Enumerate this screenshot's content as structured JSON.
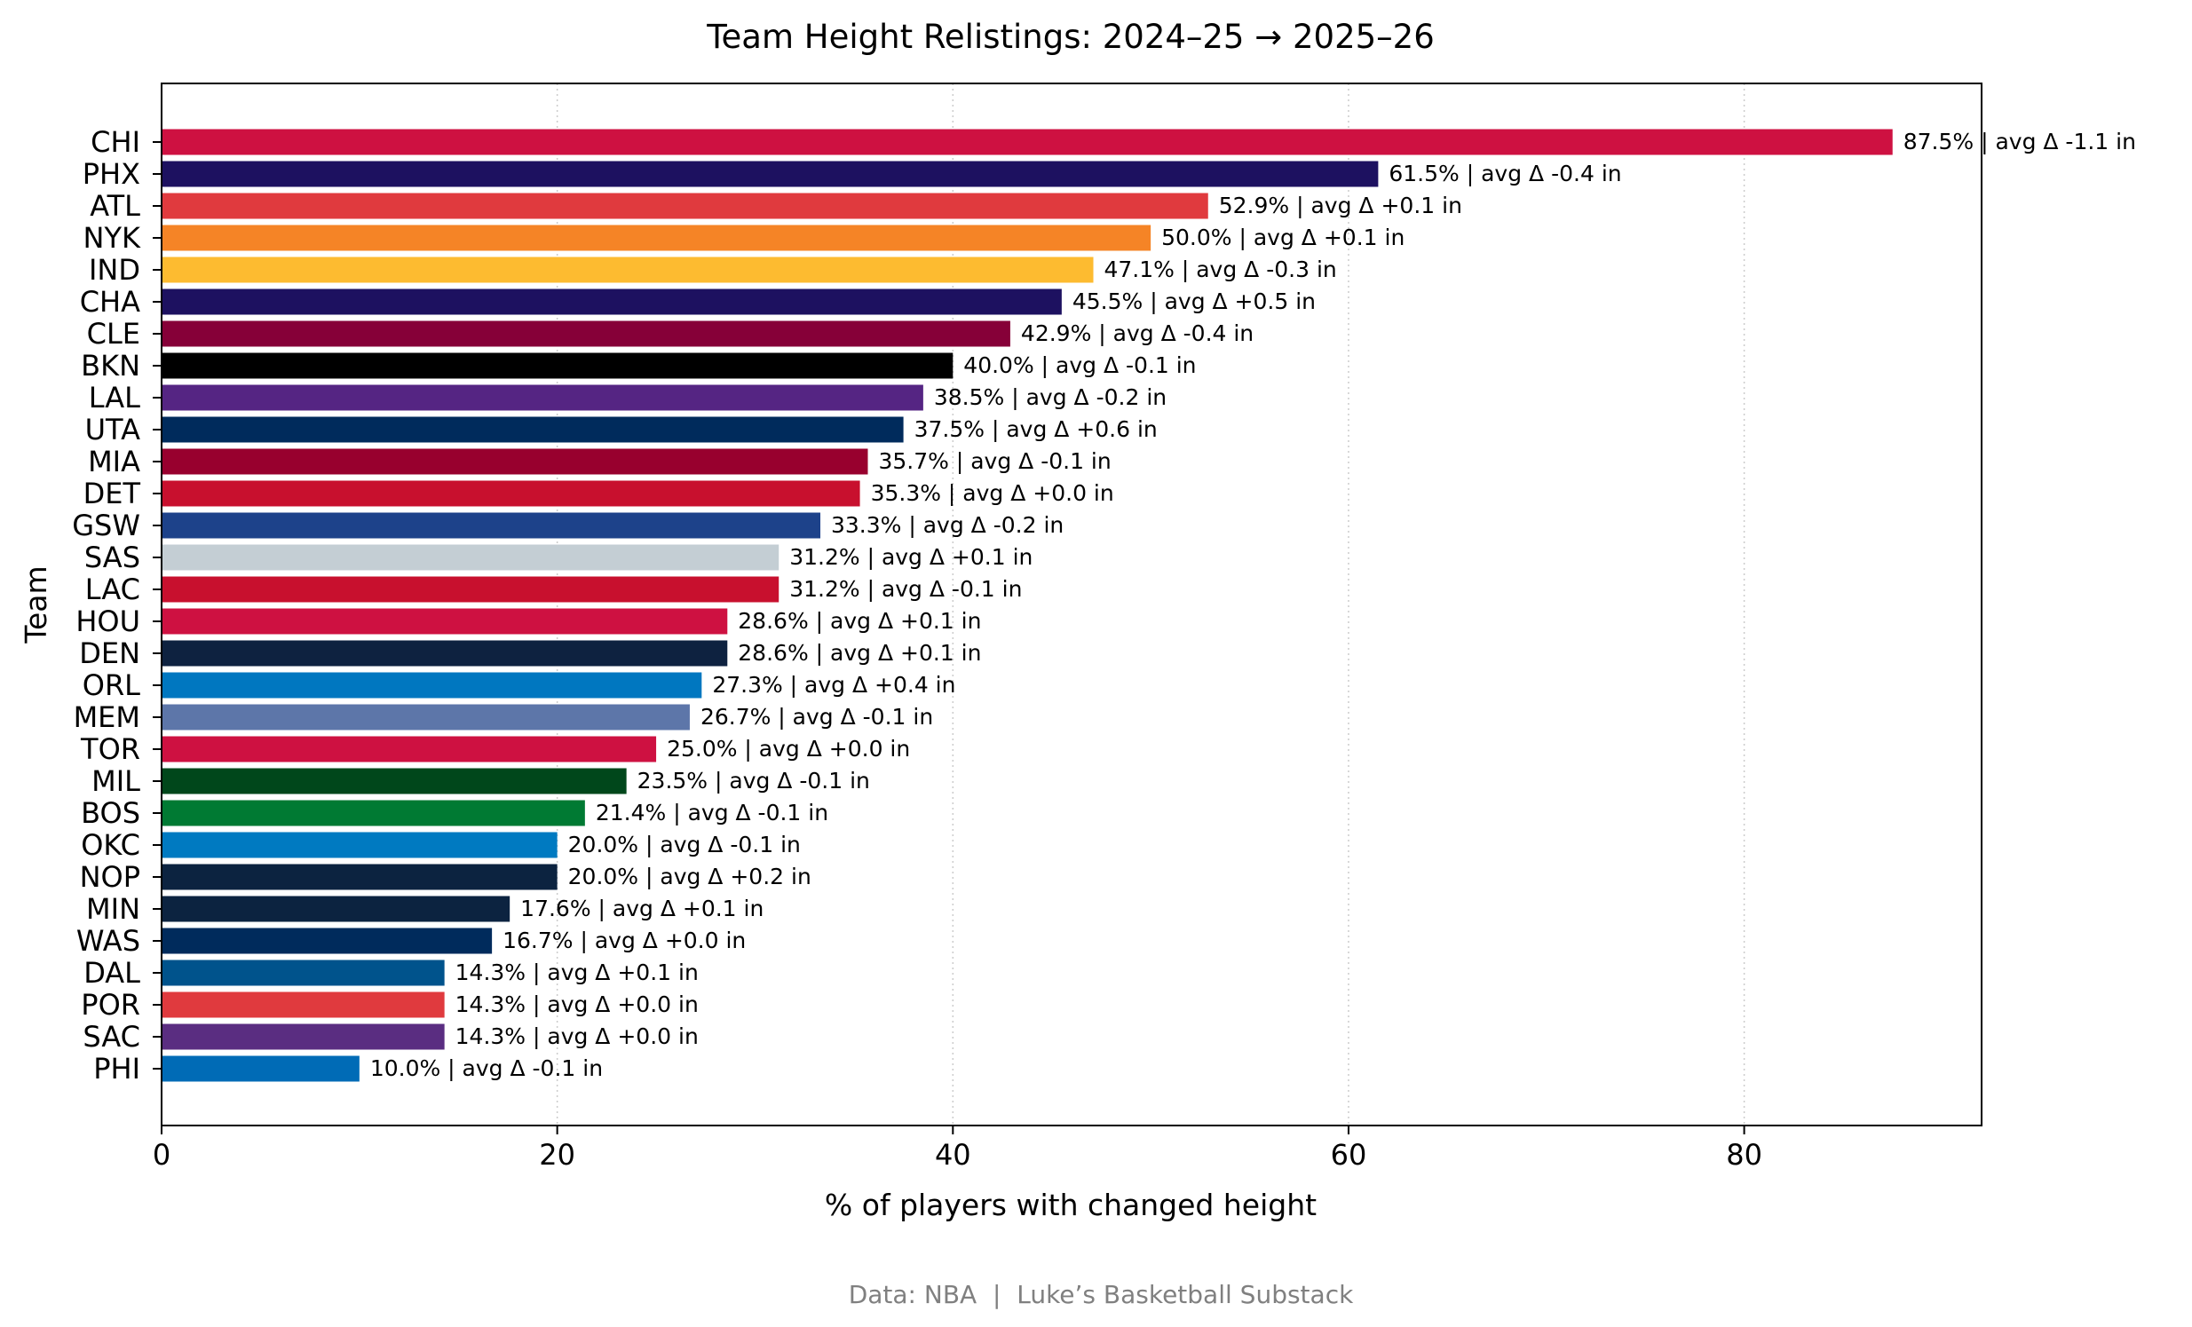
{
  "chart_data": {
    "type": "bar",
    "orientation": "horizontal",
    "title": "Team Height Relistings: 2024–25 → 2025–26",
    "xlabel": "% of players with changed height",
    "ylabel": "Team",
    "xlim": [
      0,
      92
    ],
    "xticks": [
      0,
      20,
      40,
      60,
      80
    ],
    "grid": "x-dotted",
    "footer": "Data: NBA  |  Luke’s Basketball Substack",
    "label_separator": "  |  ",
    "label_prefix": "avg Δ ",
    "label_unit": " in",
    "bars": [
      {
        "team": "CHI",
        "value": 87.5,
        "avg_delta": "-1.1",
        "color": "#CE1141"
      },
      {
        "team": "PHX",
        "value": 61.5,
        "avg_delta": "-0.4",
        "color": "#1D1160"
      },
      {
        "team": "ATL",
        "value": 52.9,
        "avg_delta": "+0.1",
        "color": "#E03A3E"
      },
      {
        "team": "NYK",
        "value": 50.0,
        "avg_delta": "+0.1",
        "color": "#F58426"
      },
      {
        "team": "IND",
        "value": 47.1,
        "avg_delta": "-0.3",
        "color": "#FDBB30"
      },
      {
        "team": "CHA",
        "value": 45.5,
        "avg_delta": "+0.5",
        "color": "#1D1160"
      },
      {
        "team": "CLE",
        "value": 42.9,
        "avg_delta": "-0.4",
        "color": "#860038"
      },
      {
        "team": "BKN",
        "value": 40.0,
        "avg_delta": "-0.1",
        "color": "#000000"
      },
      {
        "team": "LAL",
        "value": 38.5,
        "avg_delta": "-0.2",
        "color": "#552583"
      },
      {
        "team": "UTA",
        "value": 37.5,
        "avg_delta": "+0.6",
        "color": "#002B5C"
      },
      {
        "team": "MIA",
        "value": 35.7,
        "avg_delta": "-0.1",
        "color": "#98002E"
      },
      {
        "team": "DET",
        "value": 35.3,
        "avg_delta": "+0.0",
        "color": "#C8102E"
      },
      {
        "team": "GSW",
        "value": 33.3,
        "avg_delta": "-0.2",
        "color": "#1D428A"
      },
      {
        "team": "SAS",
        "value": 31.2,
        "avg_delta": "+0.1",
        "color": "#C4CED4"
      },
      {
        "team": "LAC",
        "value": 31.2,
        "avg_delta": "-0.1",
        "color": "#C8102E"
      },
      {
        "team": "HOU",
        "value": 28.6,
        "avg_delta": "+0.1",
        "color": "#CE1141"
      },
      {
        "team": "DEN",
        "value": 28.6,
        "avg_delta": "+0.1",
        "color": "#0E2240"
      },
      {
        "team": "ORL",
        "value": 27.3,
        "avg_delta": "+0.4",
        "color": "#0077C0"
      },
      {
        "team": "MEM",
        "value": 26.7,
        "avg_delta": "-0.1",
        "color": "#5D76A9"
      },
      {
        "team": "TOR",
        "value": 25.0,
        "avg_delta": "+0.0",
        "color": "#CE1141"
      },
      {
        "team": "MIL",
        "value": 23.5,
        "avg_delta": "-0.1",
        "color": "#00471B"
      },
      {
        "team": "BOS",
        "value": 21.4,
        "avg_delta": "-0.1",
        "color": "#007A33"
      },
      {
        "team": "OKC",
        "value": 20.0,
        "avg_delta": "-0.1",
        "color": "#007AC1"
      },
      {
        "team": "NOP",
        "value": 20.0,
        "avg_delta": "+0.2",
        "color": "#0C2340"
      },
      {
        "team": "MIN",
        "value": 17.6,
        "avg_delta": "+0.1",
        "color": "#0C2340"
      },
      {
        "team": "WAS",
        "value": 16.7,
        "avg_delta": "+0.0",
        "color": "#002B5C"
      },
      {
        "team": "DAL",
        "value": 14.3,
        "avg_delta": "+0.1",
        "color": "#00538C"
      },
      {
        "team": "POR",
        "value": 14.3,
        "avg_delta": "+0.0",
        "color": "#E03A3E"
      },
      {
        "team": "SAC",
        "value": 14.3,
        "avg_delta": "+0.0",
        "color": "#5A2D81"
      },
      {
        "team": "PHI",
        "value": 10.0,
        "avg_delta": "-0.1",
        "color": "#006BB6"
      }
    ]
  }
}
